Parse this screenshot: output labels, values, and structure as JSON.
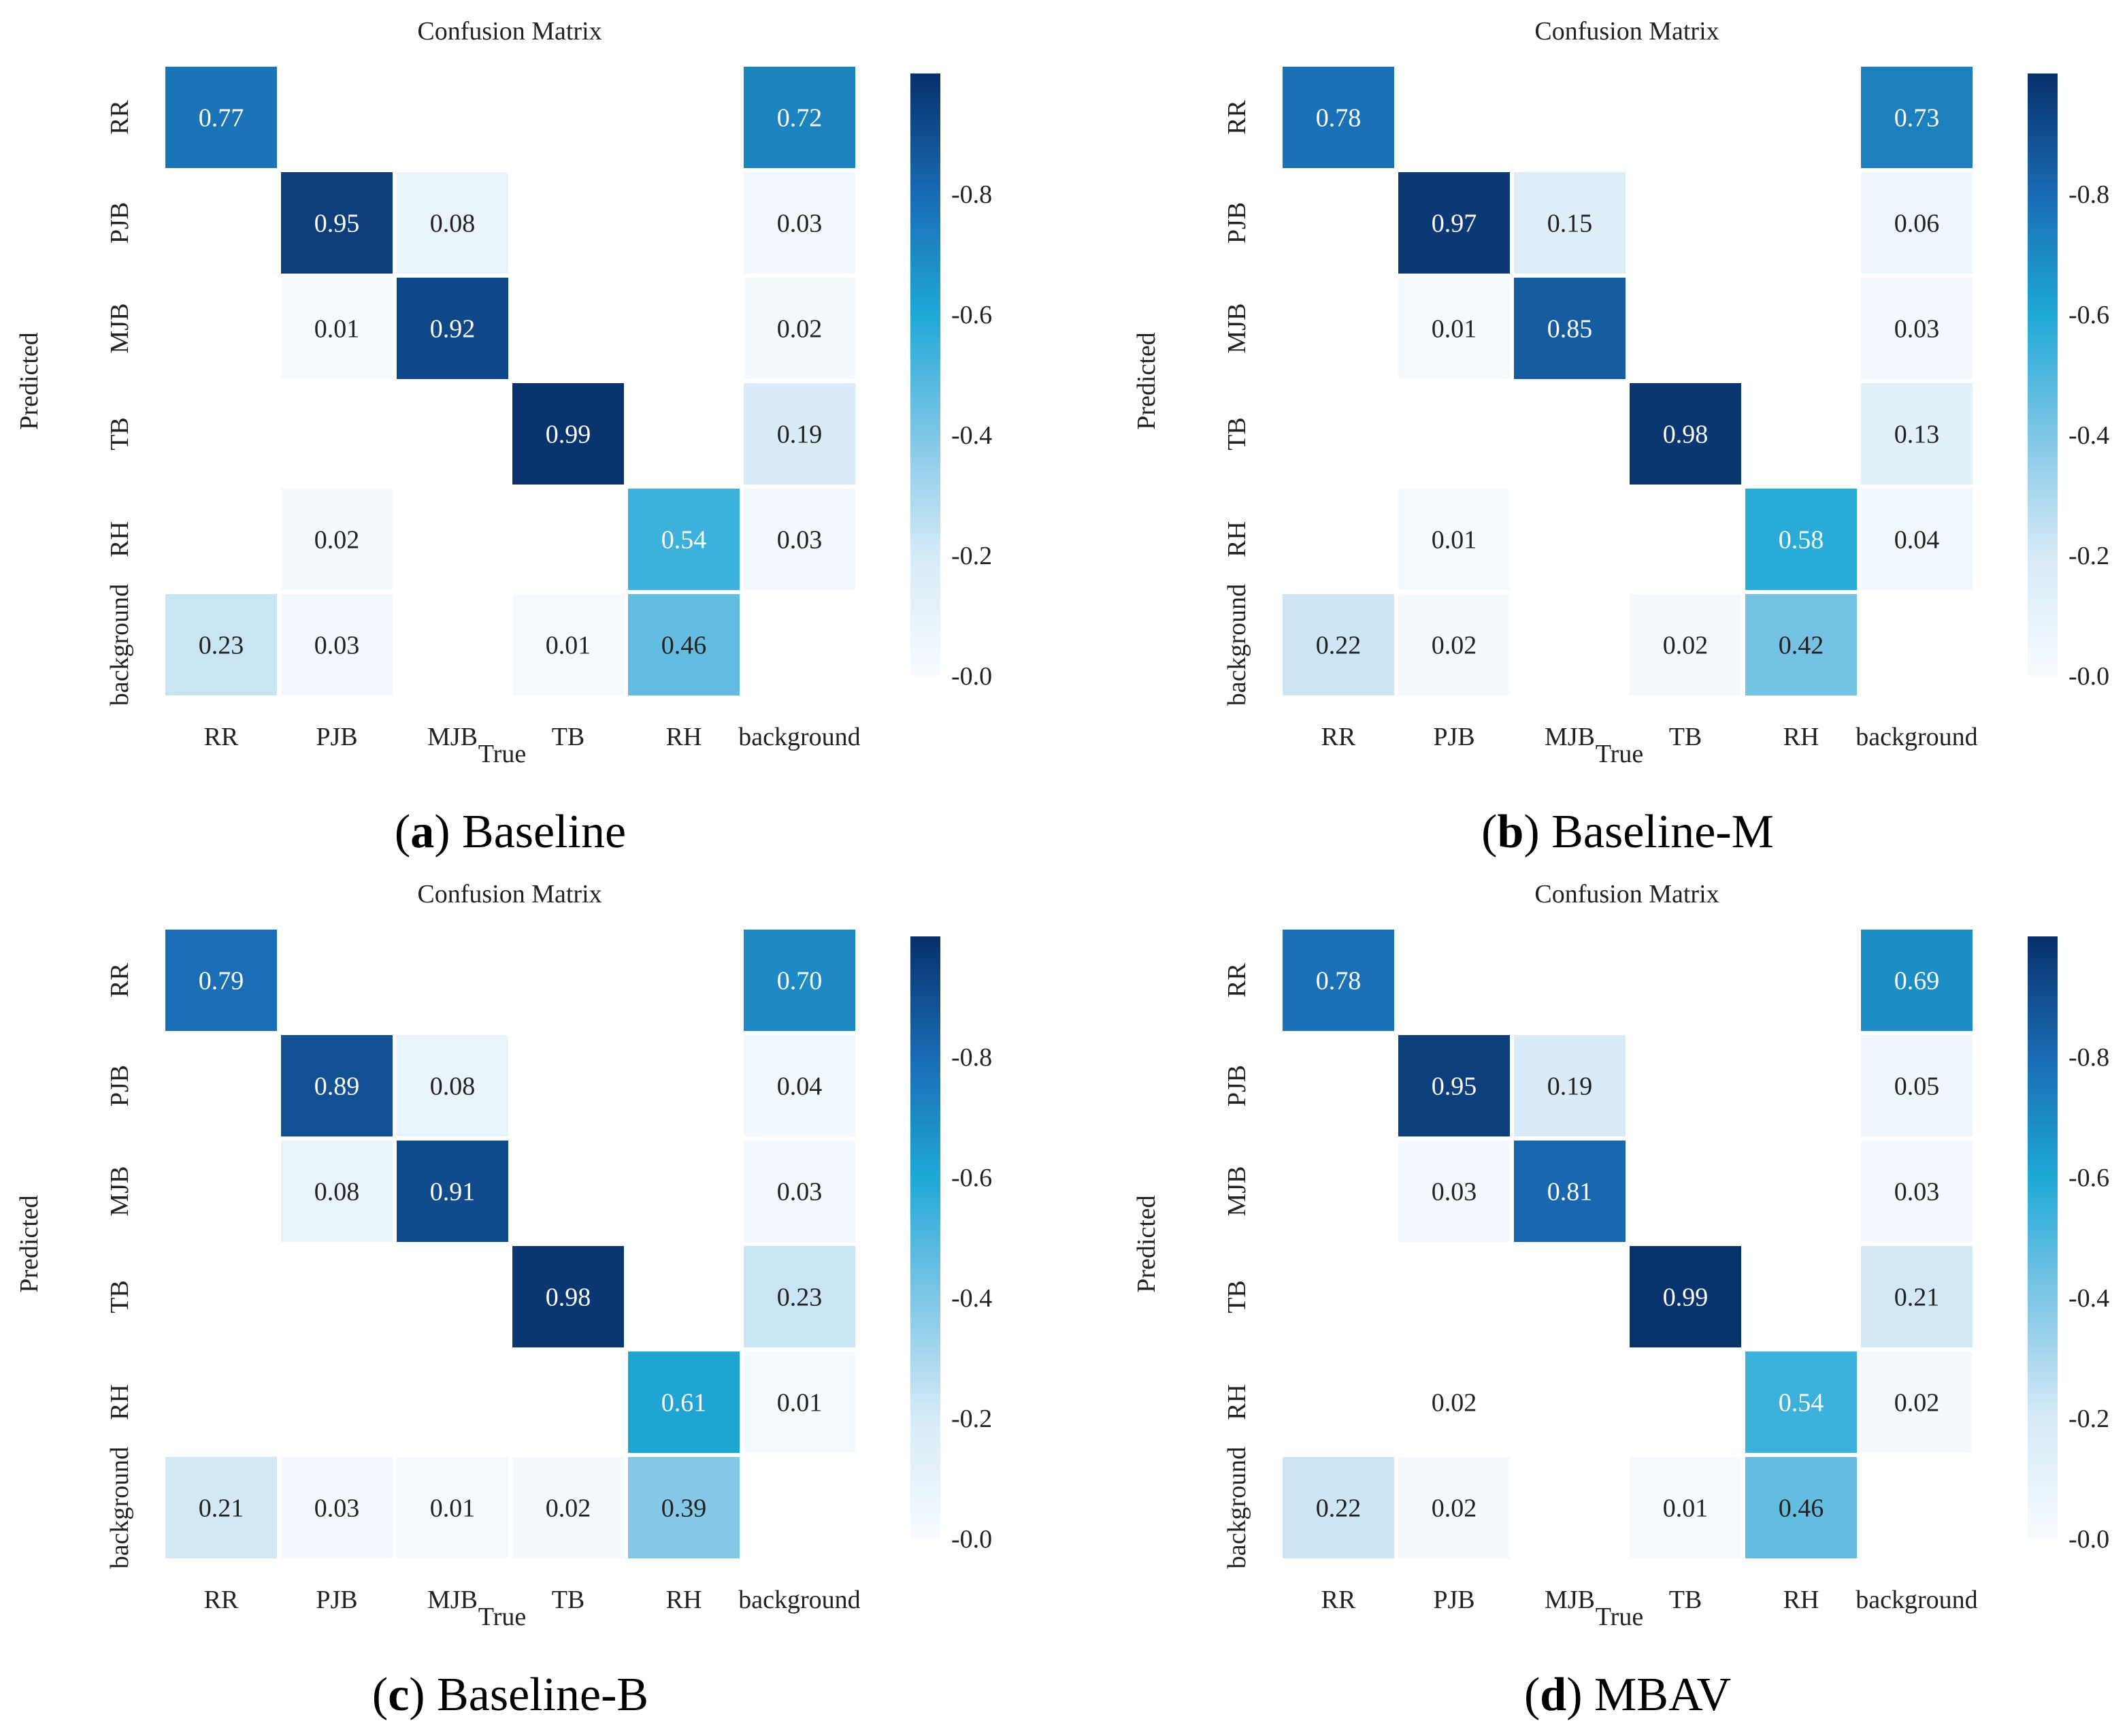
{
  "colors": {
    "cmap_low": "#f7fbff",
    "cmap_mid": "#2aa7d8",
    "cmap_high": "#08306b",
    "text_dark": "#222222",
    "text_light": "#ffffff"
  },
  "chart_data": [
    {
      "type": "heatmap",
      "title": "Confusion Matrix",
      "xlabel": "True",
      "ylabel": "Predicted",
      "x_categories": [
        "RR",
        "PJB",
        "MJB",
        "TB",
        "RH",
        "background"
      ],
      "y_categories": [
        "RR",
        "PJB",
        "MJB",
        "TB",
        "RH",
        "background"
      ],
      "cells": [
        {
          "row": 0,
          "col": 0,
          "value": 0.77,
          "label": "0.77"
        },
        {
          "row": 0,
          "col": 5,
          "value": 0.72,
          "label": "0.72"
        },
        {
          "row": 1,
          "col": 1,
          "value": 0.95,
          "label": "0.95"
        },
        {
          "row": 1,
          "col": 2,
          "value": 0.08,
          "label": "0.08"
        },
        {
          "row": 1,
          "col": 5,
          "value": 0.03,
          "label": "0.03"
        },
        {
          "row": 2,
          "col": 1,
          "value": 0.01,
          "label": "0.01"
        },
        {
          "row": 2,
          "col": 2,
          "value": 0.92,
          "label": "0.92"
        },
        {
          "row": 2,
          "col": 5,
          "value": 0.02,
          "label": "0.02"
        },
        {
          "row": 3,
          "col": 3,
          "value": 0.99,
          "label": "0.99"
        },
        {
          "row": 3,
          "col": 5,
          "value": 0.19,
          "label": "0.19"
        },
        {
          "row": 4,
          "col": 1,
          "value": 0.02,
          "label": "0.02"
        },
        {
          "row": 4,
          "col": 4,
          "value": 0.54,
          "label": "0.54"
        },
        {
          "row": 4,
          "col": 5,
          "value": 0.03,
          "label": "0.03"
        },
        {
          "row": 5,
          "col": 0,
          "value": 0.23,
          "label": "0.23"
        },
        {
          "row": 5,
          "col": 1,
          "value": 0.03,
          "label": "0.03"
        },
        {
          "row": 5,
          "col": 3,
          "value": 0.01,
          "label": "0.01"
        },
        {
          "row": 5,
          "col": 4,
          "value": 0.46,
          "label": "0.46"
        }
      ],
      "colorbar": {
        "range": [
          0,
          1
        ],
        "ticks": [
          0.8,
          0.6,
          0.4,
          0.2,
          0.0
        ],
        "tick_labels": [
          "-0.8",
          "-0.6",
          "-0.4",
          "-0.2",
          "-0.0"
        ]
      },
      "caption": {
        "letter": "a",
        "open": "(",
        "close": ")",
        "text": " Baseline"
      }
    },
    {
      "type": "heatmap",
      "title": "Confusion Matrix",
      "xlabel": "True",
      "ylabel": "Predicted",
      "x_categories": [
        "RR",
        "PJB",
        "MJB",
        "TB",
        "RH",
        "background"
      ],
      "y_categories": [
        "RR",
        "PJB",
        "MJB",
        "TB",
        "RH",
        "background"
      ],
      "cells": [
        {
          "row": 0,
          "col": 0,
          "value": 0.78,
          "label": "0.78"
        },
        {
          "row": 0,
          "col": 5,
          "value": 0.73,
          "label": "0.73"
        },
        {
          "row": 1,
          "col": 1,
          "value": 0.97,
          "label": "0.97"
        },
        {
          "row": 1,
          "col": 2,
          "value": 0.15,
          "label": "0.15"
        },
        {
          "row": 1,
          "col": 5,
          "value": 0.06,
          "label": "0.06"
        },
        {
          "row": 2,
          "col": 1,
          "value": 0.01,
          "label": "0.01"
        },
        {
          "row": 2,
          "col": 2,
          "value": 0.85,
          "label": "0.85"
        },
        {
          "row": 2,
          "col": 5,
          "value": 0.03,
          "label": "0.03"
        },
        {
          "row": 3,
          "col": 3,
          "value": 0.98,
          "label": "0.98"
        },
        {
          "row": 3,
          "col": 5,
          "value": 0.13,
          "label": "0.13"
        },
        {
          "row": 4,
          "col": 1,
          "value": 0.01,
          "label": "0.01"
        },
        {
          "row": 4,
          "col": 4,
          "value": 0.58,
          "label": "0.58"
        },
        {
          "row": 4,
          "col": 5,
          "value": 0.04,
          "label": "0.04"
        },
        {
          "row": 5,
          "col": 0,
          "value": 0.22,
          "label": "0.22"
        },
        {
          "row": 5,
          "col": 1,
          "value": 0.02,
          "label": "0.02"
        },
        {
          "row": 5,
          "col": 3,
          "value": 0.02,
          "label": "0.02"
        },
        {
          "row": 5,
          "col": 4,
          "value": 0.42,
          "label": "0.42"
        }
      ],
      "colorbar": {
        "range": [
          0,
          1
        ],
        "ticks": [
          0.8,
          0.6,
          0.4,
          0.2,
          0.0
        ],
        "tick_labels": [
          "-0.8",
          "-0.6",
          "-0.4",
          "-0.2",
          "-0.0"
        ]
      },
      "caption": {
        "letter": "b",
        "open": "(",
        "close": ")",
        "text": " Baseline-M"
      }
    },
    {
      "type": "heatmap",
      "title": "Confusion Matrix",
      "xlabel": "True",
      "ylabel": "Predicted",
      "x_categories": [
        "RR",
        "PJB",
        "MJB",
        "TB",
        "RH",
        "background"
      ],
      "y_categories": [
        "RR",
        "PJB",
        "MJB",
        "TB",
        "RH",
        "background"
      ],
      "cells": [
        {
          "row": 0,
          "col": 0,
          "value": 0.79,
          "label": "0.79"
        },
        {
          "row": 0,
          "col": 5,
          "value": 0.7,
          "label": "0.70"
        },
        {
          "row": 1,
          "col": 1,
          "value": 0.89,
          "label": "0.89"
        },
        {
          "row": 1,
          "col": 2,
          "value": 0.08,
          "label": "0.08"
        },
        {
          "row": 1,
          "col": 5,
          "value": 0.04,
          "label": "0.04"
        },
        {
          "row": 2,
          "col": 1,
          "value": 0.08,
          "label": "0.08"
        },
        {
          "row": 2,
          "col": 2,
          "value": 0.91,
          "label": "0.91"
        },
        {
          "row": 2,
          "col": 5,
          "value": 0.03,
          "label": "0.03"
        },
        {
          "row": 3,
          "col": 3,
          "value": 0.98,
          "label": "0.98"
        },
        {
          "row": 3,
          "col": 5,
          "value": 0.23,
          "label": "0.23"
        },
        {
          "row": 4,
          "col": 4,
          "value": 0.61,
          "label": "0.61"
        },
        {
          "row": 4,
          "col": 5,
          "value": 0.01,
          "label": "0.01"
        },
        {
          "row": 5,
          "col": 0,
          "value": 0.21,
          "label": "0.21"
        },
        {
          "row": 5,
          "col": 1,
          "value": 0.03,
          "label": "0.03"
        },
        {
          "row": 5,
          "col": 2,
          "value": 0.01,
          "label": "0.01"
        },
        {
          "row": 5,
          "col": 3,
          "value": 0.02,
          "label": "0.02"
        },
        {
          "row": 5,
          "col": 4,
          "value": 0.39,
          "label": "0.39"
        }
      ],
      "colorbar": {
        "range": [
          0,
          1
        ],
        "ticks": [
          0.8,
          0.6,
          0.4,
          0.2,
          0.0
        ],
        "tick_labels": [
          "-0.8",
          "-0.6",
          "-0.4",
          "-0.2",
          "-0.0"
        ]
      },
      "caption": {
        "letter": "c",
        "open": "(",
        "close": ")",
        "text": " Baseline-B"
      }
    },
    {
      "type": "heatmap",
      "title": "Confusion Matrix",
      "xlabel": "True",
      "ylabel": "Predicted",
      "x_categories": [
        "RR",
        "PJB",
        "MJB",
        "TB",
        "RH",
        "background"
      ],
      "y_categories": [
        "RR",
        "PJB",
        "MJB",
        "TB",
        "RH",
        "background"
      ],
      "cells": [
        {
          "row": 0,
          "col": 0,
          "value": 0.78,
          "label": "0.78"
        },
        {
          "row": 0,
          "col": 5,
          "value": 0.69,
          "label": "0.69"
        },
        {
          "row": 1,
          "col": 1,
          "value": 0.95,
          "label": "0.95"
        },
        {
          "row": 1,
          "col": 2,
          "value": 0.19,
          "label": "0.19"
        },
        {
          "row": 1,
          "col": 5,
          "value": 0.05,
          "label": "0.05"
        },
        {
          "row": 2,
          "col": 1,
          "value": 0.03,
          "label": "0.03"
        },
        {
          "row": 2,
          "col": 2,
          "value": 0.81,
          "label": "0.81"
        },
        {
          "row": 2,
          "col": 5,
          "value": 0.03,
          "label": "0.03"
        },
        {
          "row": 3,
          "col": 3,
          "value": 0.99,
          "label": "0.99"
        },
        {
          "row": 3,
          "col": 5,
          "value": 0.21,
          "label": "0.21"
        },
        {
          "row": 4,
          "col": 1,
          "value": 0.02,
          "label": "0.02",
          "no_fill": true
        },
        {
          "row": 4,
          "col": 4,
          "value": 0.54,
          "label": "0.54"
        },
        {
          "row": 4,
          "col": 5,
          "value": 0.02,
          "label": "0.02"
        },
        {
          "row": 5,
          "col": 0,
          "value": 0.22,
          "label": "0.22"
        },
        {
          "row": 5,
          "col": 1,
          "value": 0.02,
          "label": "0.02"
        },
        {
          "row": 5,
          "col": 3,
          "value": 0.01,
          "label": "0.01"
        },
        {
          "row": 5,
          "col": 4,
          "value": 0.46,
          "label": "0.46"
        }
      ],
      "colorbar": {
        "range": [
          0,
          1
        ],
        "ticks": [
          0.8,
          0.6,
          0.4,
          0.2,
          0.0
        ],
        "tick_labels": [
          "-0.8",
          "-0.6",
          "-0.4",
          "-0.2",
          "-0.0"
        ]
      },
      "caption": {
        "letter": "d",
        "open": "(",
        "close": ")",
        "text": " MBAV"
      }
    }
  ]
}
